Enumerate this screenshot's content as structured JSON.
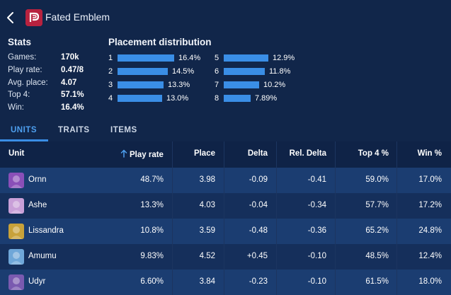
{
  "header": {
    "title": "Fated Emblem"
  },
  "stats": {
    "heading": "Stats",
    "items": [
      {
        "label": "Games:",
        "value": "170k"
      },
      {
        "label": "Play rate:",
        "value": "0.47/8"
      },
      {
        "label": "Avg. place:",
        "value": "4.07"
      },
      {
        "label": "Top 4:",
        "value": "57.1%"
      },
      {
        "label": "Win:",
        "value": "16.4%"
      }
    ]
  },
  "placement": {
    "heading": "Placement distribution",
    "items": [
      {
        "place": "1",
        "value": "16.4%",
        "pct": 16.4
      },
      {
        "place": "2",
        "value": "14.5%",
        "pct": 14.5
      },
      {
        "place": "3",
        "value": "13.3%",
        "pct": 13.3
      },
      {
        "place": "4",
        "value": "13.0%",
        "pct": 13.0
      },
      {
        "place": "5",
        "value": "12.9%",
        "pct": 12.9
      },
      {
        "place": "6",
        "value": "11.8%",
        "pct": 11.8
      },
      {
        "place": "7",
        "value": "10.2%",
        "pct": 10.2
      },
      {
        "place": "8",
        "value": "7.89%",
        "pct": 7.89
      }
    ]
  },
  "tabs": [
    {
      "label": "UNITS",
      "active": true
    },
    {
      "label": "TRAITS",
      "active": false
    },
    {
      "label": "ITEMS",
      "active": false
    }
  ],
  "table": {
    "headers": {
      "unit": "Unit",
      "play_rate": "Play rate",
      "place": "Place",
      "delta": "Delta",
      "rel_delta": "Rel. Delta",
      "top4": "Top 4 %",
      "win": "Win %"
    },
    "sort_icon": "arrow-up-icon",
    "rows": [
      {
        "unit": "Ornn",
        "play_rate": "48.7%",
        "place": "3.98",
        "delta": "-0.09",
        "rel_delta": "-0.41",
        "top4": "59.0%",
        "win": "17.0%",
        "color": "#8a4fb8"
      },
      {
        "unit": "Ashe",
        "play_rate": "13.3%",
        "place": "4.03",
        "delta": "-0.04",
        "rel_delta": "-0.34",
        "top4": "57.7%",
        "win": "17.2%",
        "color": "#c9a0d8"
      },
      {
        "unit": "Lissandra",
        "play_rate": "10.8%",
        "place": "3.59",
        "delta": "-0.48",
        "rel_delta": "-0.36",
        "top4": "65.2%",
        "win": "24.8%",
        "color": "#c8a23a"
      },
      {
        "unit": "Amumu",
        "play_rate": "9.83%",
        "place": "4.52",
        "delta": "+0.45",
        "rel_delta": "-0.10",
        "top4": "48.5%",
        "win": "12.4%",
        "color": "#6fa7d8"
      },
      {
        "unit": "Udyr",
        "play_rate": "6.60%",
        "place": "3.84",
        "delta": "-0.23",
        "rel_delta": "-0.10",
        "top4": "61.5%",
        "win": "18.0%",
        "color": "#7a5ab0"
      }
    ]
  }
}
